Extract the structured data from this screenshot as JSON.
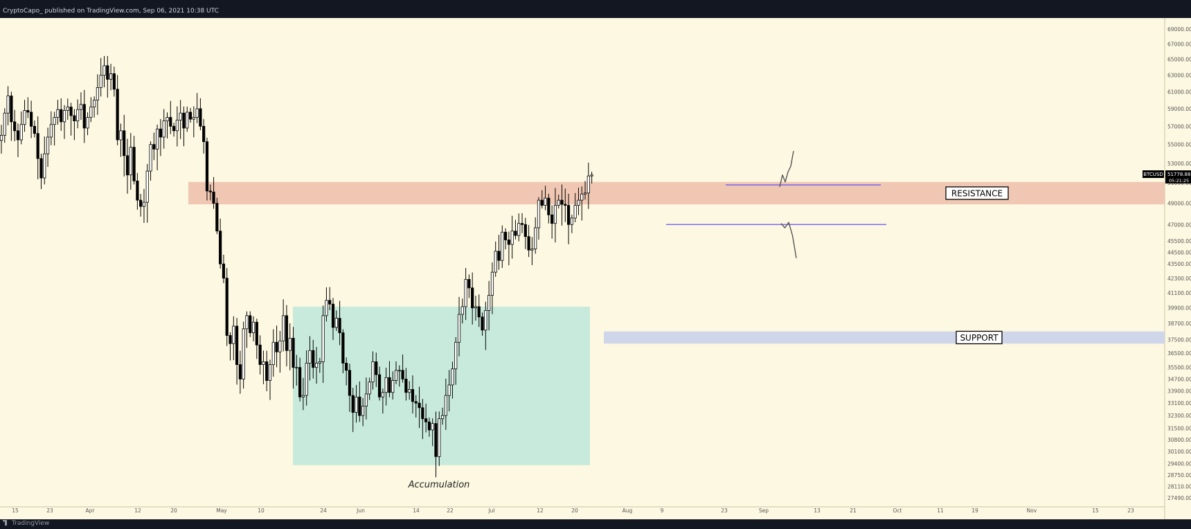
{
  "header": {
    "published": "CryptoCapo_ published on TradingView.com, Sep 06, 2021 10:38 UTC"
  },
  "footer": {
    "brand": "TradingView"
  },
  "colors": {
    "background": "#fdf8e1",
    "candle": "#000000",
    "resistance_zone": "#f0c7b3",
    "support_zone": "#cfd6ea",
    "accumulation_box": "#c8eadc",
    "level_line": "#7b6cf0",
    "projection": "#555555"
  },
  "chart_data": {
    "type": "candlestick",
    "symbol": "BTCUSD",
    "last_price": "51778.88",
    "countdown": "05:21:25",
    "x_ticks": [
      "15",
      "23",
      "Apr",
      "12",
      "20",
      "May",
      "10",
      "24",
      "Jun",
      "14",
      "22",
      "Jul",
      "12",
      "20",
      "Aug",
      "9",
      "23",
      "Sep",
      "13",
      "21",
      "Oct",
      "11",
      "19",
      "Nov",
      "15",
      "23"
    ],
    "y_ticks": [
      "69000.00",
      "67000.00",
      "65000.00",
      "63000.00",
      "61000.00",
      "59000.00",
      "57000.00",
      "55000.00",
      "53000.00",
      "51000.00",
      "49000.00",
      "47000.00",
      "45500.00",
      "44500.00",
      "43500.00",
      "42300.00",
      "41100.00",
      "39900.00",
      "38700.00",
      "37500.00",
      "36500.00",
      "35500.00",
      "34700.00",
      "33900.00",
      "33100.00",
      "32300.00",
      "31500.00",
      "30800.00",
      "30100.00",
      "29400.00",
      "28750.00",
      "28110.00",
      "27490.00"
    ],
    "y_scale": "log",
    "ylim": [
      27000,
      70500
    ],
    "price_path_daily_close": [
      56000,
      58500,
      60500,
      57500,
      56500,
      55500,
      57200,
      58800,
      58600,
      57000,
      56200,
      53500,
      51500,
      54000,
      55800,
      57200,
      58000,
      58900,
      57500,
      58800,
      59200,
      58200,
      57600,
      58900,
      59500,
      56800,
      58000,
      59200,
      60000,
      61500,
      63000,
      64200,
      62500,
      63200,
      61300,
      55500,
      56500,
      53800,
      51800,
      54700,
      51200,
      49300,
      48700,
      49100,
      52200,
      55000,
      54500,
      56700,
      55800,
      57600,
      58000,
      57000,
      56500,
      57700,
      58500,
      56800,
      58600,
      57800,
      58000,
      59000,
      57000,
      55300,
      50200,
      50100,
      49000,
      46400,
      43500,
      42300,
      37800,
      37200,
      38500,
      35700,
      34700,
      38300,
      39300,
      38000,
      38800,
      37100,
      35700,
      35900,
      34600,
      35700,
      37300,
      36600,
      37400,
      39300,
      36700,
      37600,
      35500,
      35500,
      33500,
      33600,
      35800,
      36700,
      35500,
      35800,
      35900,
      39300,
      40500,
      40200,
      38400,
      39100,
      38000,
      35800,
      35300,
      33600,
      32500,
      33500,
      32300,
      32900,
      33700,
      34500,
      35900,
      35000,
      33500,
      33800,
      34800,
      33800,
      34600,
      35300,
      35300,
      34700,
      33800,
      34000,
      33200,
      33100,
      32800,
      32100,
      31900,
      31400,
      31800,
      29800,
      32100,
      32300,
      33600,
      34300,
      35400,
      37300,
      39400,
      40000,
      42200,
      41500,
      39900,
      40000,
      39200,
      38200,
      39700,
      40900,
      42800,
      44600,
      43800,
      46300,
      45600,
      45200,
      46400,
      46000,
      47100,
      47000,
      45900,
      44700,
      44800,
      46700,
      49300,
      48800,
      49500,
      47900,
      47100,
      48800,
      49300,
      48900,
      48800,
      47000,
      47600,
      48800,
      49300,
      49900,
      50000,
      51700,
      51800
    ],
    "zones": [
      {
        "name": "resistance_zone",
        "low": 48900,
        "high": 51100,
        "label": "RESISTANCE"
      },
      {
        "name": "support_zone",
        "low": 37200,
        "high": 38100,
        "label": "SUPPORT"
      },
      {
        "name": "accumulation_box",
        "low": 29300,
        "high": 40000,
        "label": "Accumulation"
      }
    ],
    "levels": [
      {
        "name": "upper_level",
        "value": 50800
      },
      {
        "name": "lower_level",
        "value": 47000
      }
    ],
    "projections": [
      {
        "name": "bullish-projection",
        "values": [
          50600,
          51800,
          51100,
          52100,
          52700,
          54300
        ]
      },
      {
        "name": "bearish-projection",
        "values": [
          47100,
          46700,
          47200,
          46000,
          44000
        ]
      }
    ]
  }
}
